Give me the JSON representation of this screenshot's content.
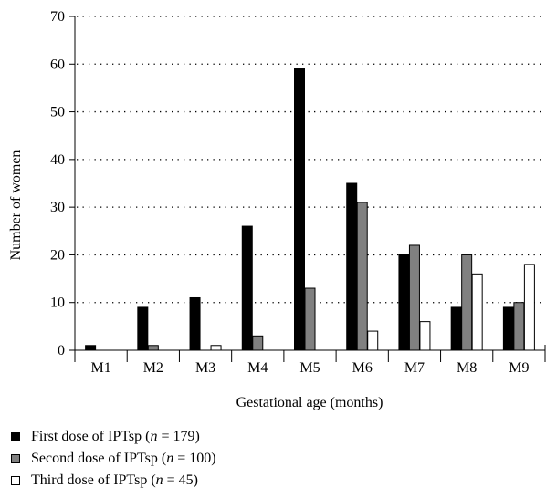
{
  "chart_data": {
    "type": "bar",
    "categories": [
      "M1",
      "M2",
      "M3",
      "M4",
      "M5",
      "M6",
      "M7",
      "M8",
      "M9"
    ],
    "series": [
      {
        "name": "First dose of IPTsp (n = 179)",
        "values": [
          1,
          9,
          11,
          26,
          59,
          35,
          20,
          9,
          9
        ],
        "color": "#000000"
      },
      {
        "name": "Second dose of IPTsp (n = 100)",
        "values": [
          0,
          1,
          0,
          3,
          13,
          31,
          22,
          20,
          10
        ],
        "color": "#808080"
      },
      {
        "name": "Third dose of IPTsp (n = 45)",
        "values": [
          0,
          0,
          1,
          0,
          0,
          4,
          6,
          16,
          18
        ],
        "color": "#ffffff"
      }
    ],
    "xlabel": "Gestational age (months)",
    "ylabel": "Number of women",
    "ylim": [
      0,
      70
    ],
    "yticks": [
      0,
      10,
      20,
      30,
      40,
      50,
      60,
      70
    ],
    "grid": "horizontal dotted",
    "legend_position": "bottom-left"
  },
  "legend": [
    {
      "label_pre": "First dose of IPTsp (",
      "n_symbol": "n",
      "label_post": " = 179)",
      "color": "#000000"
    },
    {
      "label_pre": "Second dose of IPTsp (",
      "n_symbol": "n",
      "label_post": " = 100)",
      "color": "#808080"
    },
    {
      "label_pre": "Third dose of IPTsp (",
      "n_symbol": "n",
      "label_post": " = 45)",
      "color": "#ffffff"
    }
  ]
}
